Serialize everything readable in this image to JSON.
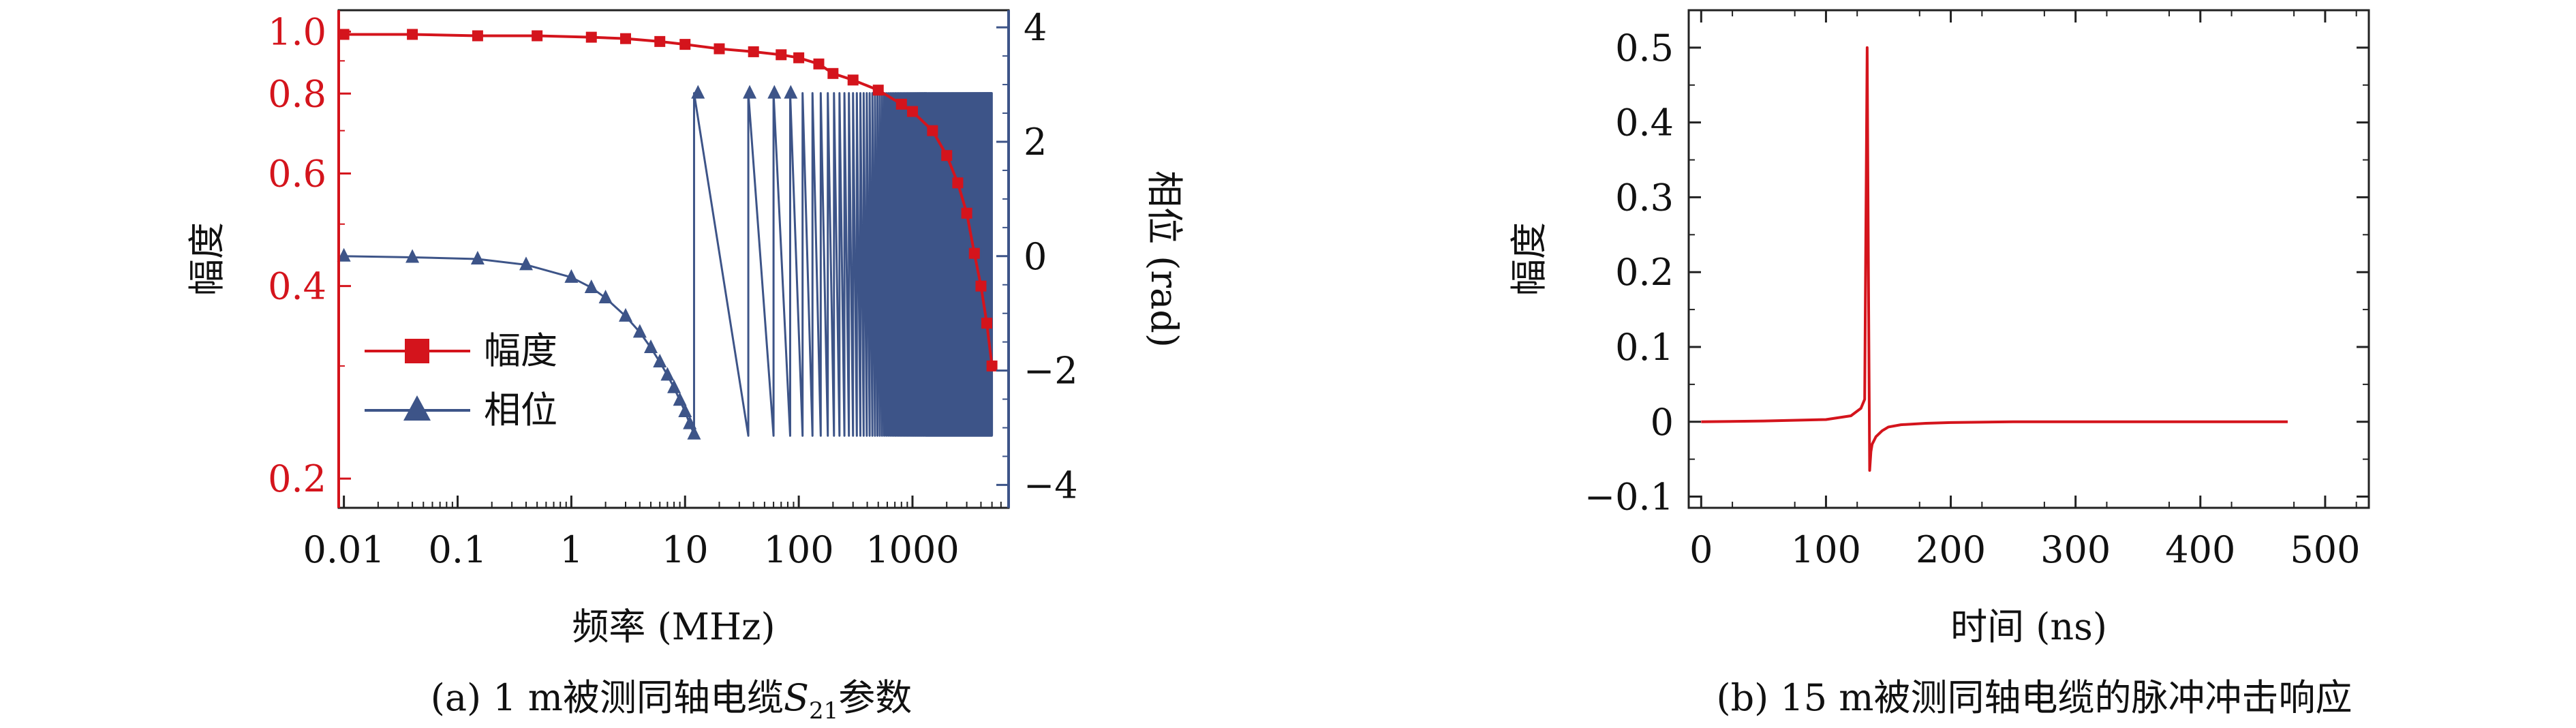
{
  "colors": {
    "magnitude": "#d4141c",
    "phase": "#3d5488",
    "axis": "#222222"
  },
  "chart_data": [
    {
      "type": "line",
      "caption": "(a) 1 m被测同轴电缆S21参数",
      "caption_prefix": "(a) 1 m被测同轴电缆",
      "caption_symbol": "S",
      "caption_subscript": "21",
      "caption_suffix": "参数",
      "xlabel": "频率 (MHz)",
      "x_scale": "log",
      "xlim": [
        0.009,
        7000
      ],
      "x_ticks": [
        0.01,
        0.1,
        1,
        10,
        100,
        1000
      ],
      "x_tick_labels": [
        "0.01",
        "0.1",
        "1",
        "10",
        "100",
        "1000"
      ],
      "y_left": {
        "label": "幅度",
        "scale": "log",
        "lim": [
          0.18,
          1.08
        ],
        "ticks": [
          0.2,
          0.4,
          0.6,
          0.8,
          1.0
        ],
        "tick_labels": [
          "0.2",
          "0.4",
          "0.6",
          "0.8",
          "1.0"
        ]
      },
      "y_right": {
        "label": "相位 (rad)",
        "scale": "linear",
        "lim": [
          -4.4,
          4.3
        ],
        "ticks": [
          -4,
          -2,
          0,
          2,
          4
        ],
        "tick_labels": [
          "−4",
          "−2",
          "0",
          "2",
          "4"
        ]
      },
      "legend_position": "lower-left",
      "series": [
        {
          "name": "幅度",
          "axis": "left",
          "marker": "square",
          "x": [
            0.01,
            0.04,
            0.15,
            0.5,
            1.5,
            3,
            6,
            10,
            20,
            40,
            70,
            100,
            150,
            200,
            300,
            500,
            800,
            1000,
            1500,
            2000,
            2500,
            3000,
            3500,
            4000,
            4500,
            5000
          ],
          "y": [
            0.99,
            0.99,
            0.985,
            0.985,
            0.98,
            0.975,
            0.965,
            0.955,
            0.94,
            0.93,
            0.92,
            0.91,
            0.89,
            0.86,
            0.84,
            0.81,
            0.77,
            0.75,
            0.7,
            0.64,
            0.58,
            0.52,
            0.45,
            0.4,
            0.35,
            0.3
          ]
        },
        {
          "name": "相位",
          "axis": "right",
          "marker": "triangle",
          "x": [
            0.01,
            0.04,
            0.15,
            0.4,
            1,
            1.5,
            2,
            3,
            4,
            5,
            6,
            7,
            8,
            9,
            10,
            11,
            12
          ],
          "y": [
            0.0,
            -0.02,
            -0.05,
            -0.15,
            -0.37,
            -0.55,
            -0.73,
            -1.05,
            -1.33,
            -1.6,
            -1.85,
            -2.08,
            -2.3,
            -2.52,
            -2.72,
            -2.93,
            -3.11
          ],
          "wrap_start_MHz": 12,
          "wrap_period_MHz": 24,
          "wrap_extent_MHz": 5000,
          "phase_range": [
            -3.14,
            2.85
          ]
        }
      ]
    },
    {
      "type": "line",
      "caption": "(b) 15 m被测同轴电缆的脉冲冲击响应",
      "xlabel": "时间 (ns)",
      "ylabel": "幅度",
      "xlim": [
        -10,
        535
      ],
      "ylim": [
        -0.115,
        0.55
      ],
      "x_ticks": [
        0,
        100,
        200,
        300,
        400,
        500
      ],
      "x_tick_labels": [
        "0",
        "100",
        "200",
        "300",
        "400",
        "500"
      ],
      "y_ticks": [
        -0.1,
        0,
        0.1,
        0.2,
        0.3,
        0.4,
        0.5
      ],
      "y_tick_labels": [
        "−0.1",
        "0",
        "0.1",
        "0.2",
        "0.3",
        "0.4",
        "0.5"
      ],
      "series": [
        {
          "x": [
            0,
            50,
            100,
            120,
            128,
            131,
            133,
            134,
            135,
            136,
            137,
            140,
            145,
            150,
            160,
            180,
            200,
            250,
            300,
            350,
            400,
            470
          ],
          "y": [
            0,
            0.001,
            0.003,
            0.008,
            0.018,
            0.03,
            0.5,
            0.2,
            -0.065,
            -0.04,
            -0.03,
            -0.02,
            -0.012,
            -0.007,
            -0.004,
            -0.002,
            -0.001,
            0,
            0,
            0,
            0,
            0
          ]
        }
      ]
    }
  ]
}
